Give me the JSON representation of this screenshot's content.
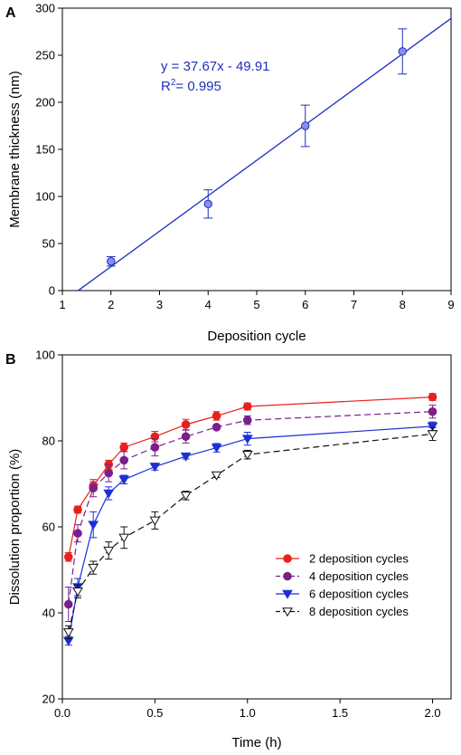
{
  "chart_data": [
    {
      "panel": "A",
      "type": "scatter",
      "xlabel": "Deposition cycle",
      "ylabel": "Membrane thickness (nm)",
      "xlim": [
        1,
        9
      ],
      "ylim": [
        0,
        300
      ],
      "xticks": [
        1,
        2,
        3,
        4,
        5,
        6,
        7,
        8,
        9
      ],
      "yticks": [
        0,
        50,
        100,
        150,
        200,
        250,
        300
      ],
      "series": [
        {
          "x": [
            2,
            4,
            6,
            8
          ],
          "y": [
            31,
            92,
            175,
            254
          ],
          "err": [
            5,
            15,
            22,
            24
          ],
          "color": "#1f2fbf",
          "fill": "#8a8cf0"
        }
      ],
      "fit": {
        "slope": 37.67,
        "intercept": -49.91,
        "x_range": [
          1.32,
          9
        ],
        "equation": "y = 37.67x - 49.91",
        "r2_label": "R",
        "r2_sup": "2",
        "r2_value": "= 0.995",
        "color": "#1f2fbf"
      },
      "grid": false
    },
    {
      "panel": "B",
      "type": "line",
      "xlabel": "Time (h)",
      "ylabel": "Dissolution proportion (%)",
      "xlim": [
        0,
        2.1
      ],
      "ylim": [
        20,
        100
      ],
      "xticks": [
        0.0,
        0.5,
        1.0,
        1.5,
        2.0
      ],
      "xtick_labels": [
        "0.0",
        "0.5",
        "1.0",
        "1.5",
        "2.0"
      ],
      "yticks": [
        20,
        40,
        60,
        80,
        100
      ],
      "x": [
        0.033,
        0.083,
        0.167,
        0.25,
        0.333,
        0.5,
        0.667,
        0.833,
        1.0,
        2.0
      ],
      "legend_position": "lower-right",
      "grid": false,
      "series": [
        {
          "name": "2 deposition cycles",
          "values": [
            53,
            64,
            69.5,
            74.5,
            78.5,
            81,
            83.8,
            85.8,
            88,
            90.2
          ],
          "err": [
            1,
            0.8,
            1,
            1,
            1,
            1.2,
            1.2,
            1,
            0.8,
            0.8
          ],
          "color": "#e8201c",
          "marker": "circle",
          "marker_fill": "#e8201c",
          "dash": ""
        },
        {
          "name": "4 deposition cycles",
          "values": [
            42,
            58.5,
            69,
            72.5,
            75.5,
            78.5,
            81,
            83.2,
            84.8,
            86.8
          ],
          "err": [
            4,
            2,
            2,
            2,
            2,
            2,
            1.5,
            0.5,
            1,
            1.5
          ],
          "color": "#7a1f8c",
          "marker": "circle",
          "marker_fill": "#7a1f8c",
          "dash": "7,4"
        },
        {
          "name": "6 deposition cycles",
          "values": [
            33.5,
            46,
            60.5,
            67.8,
            71,
            74,
            76.4,
            78.4,
            80.5,
            83.4
          ],
          "err": [
            1,
            2,
            3,
            1.5,
            1,
            0.8,
            0.6,
            1,
            1.5,
            1
          ],
          "color": "#1c2fd6",
          "marker": "triangle-down",
          "marker_fill": "#1c2fd6",
          "dash": ""
        },
        {
          "name": "8 deposition cycles",
          "values": [
            35.5,
            45,
            50.5,
            54.5,
            57.5,
            61.5,
            67.3,
            72,
            76.8,
            81.6
          ],
          "err": [
            1.5,
            1.5,
            1.5,
            2,
            2.5,
            2,
            1,
            0.5,
            1,
            1.5
          ],
          "color": "#111111",
          "marker": "triangle-down",
          "marker_fill": "#ffffff",
          "dash": "7,4"
        }
      ]
    }
  ]
}
